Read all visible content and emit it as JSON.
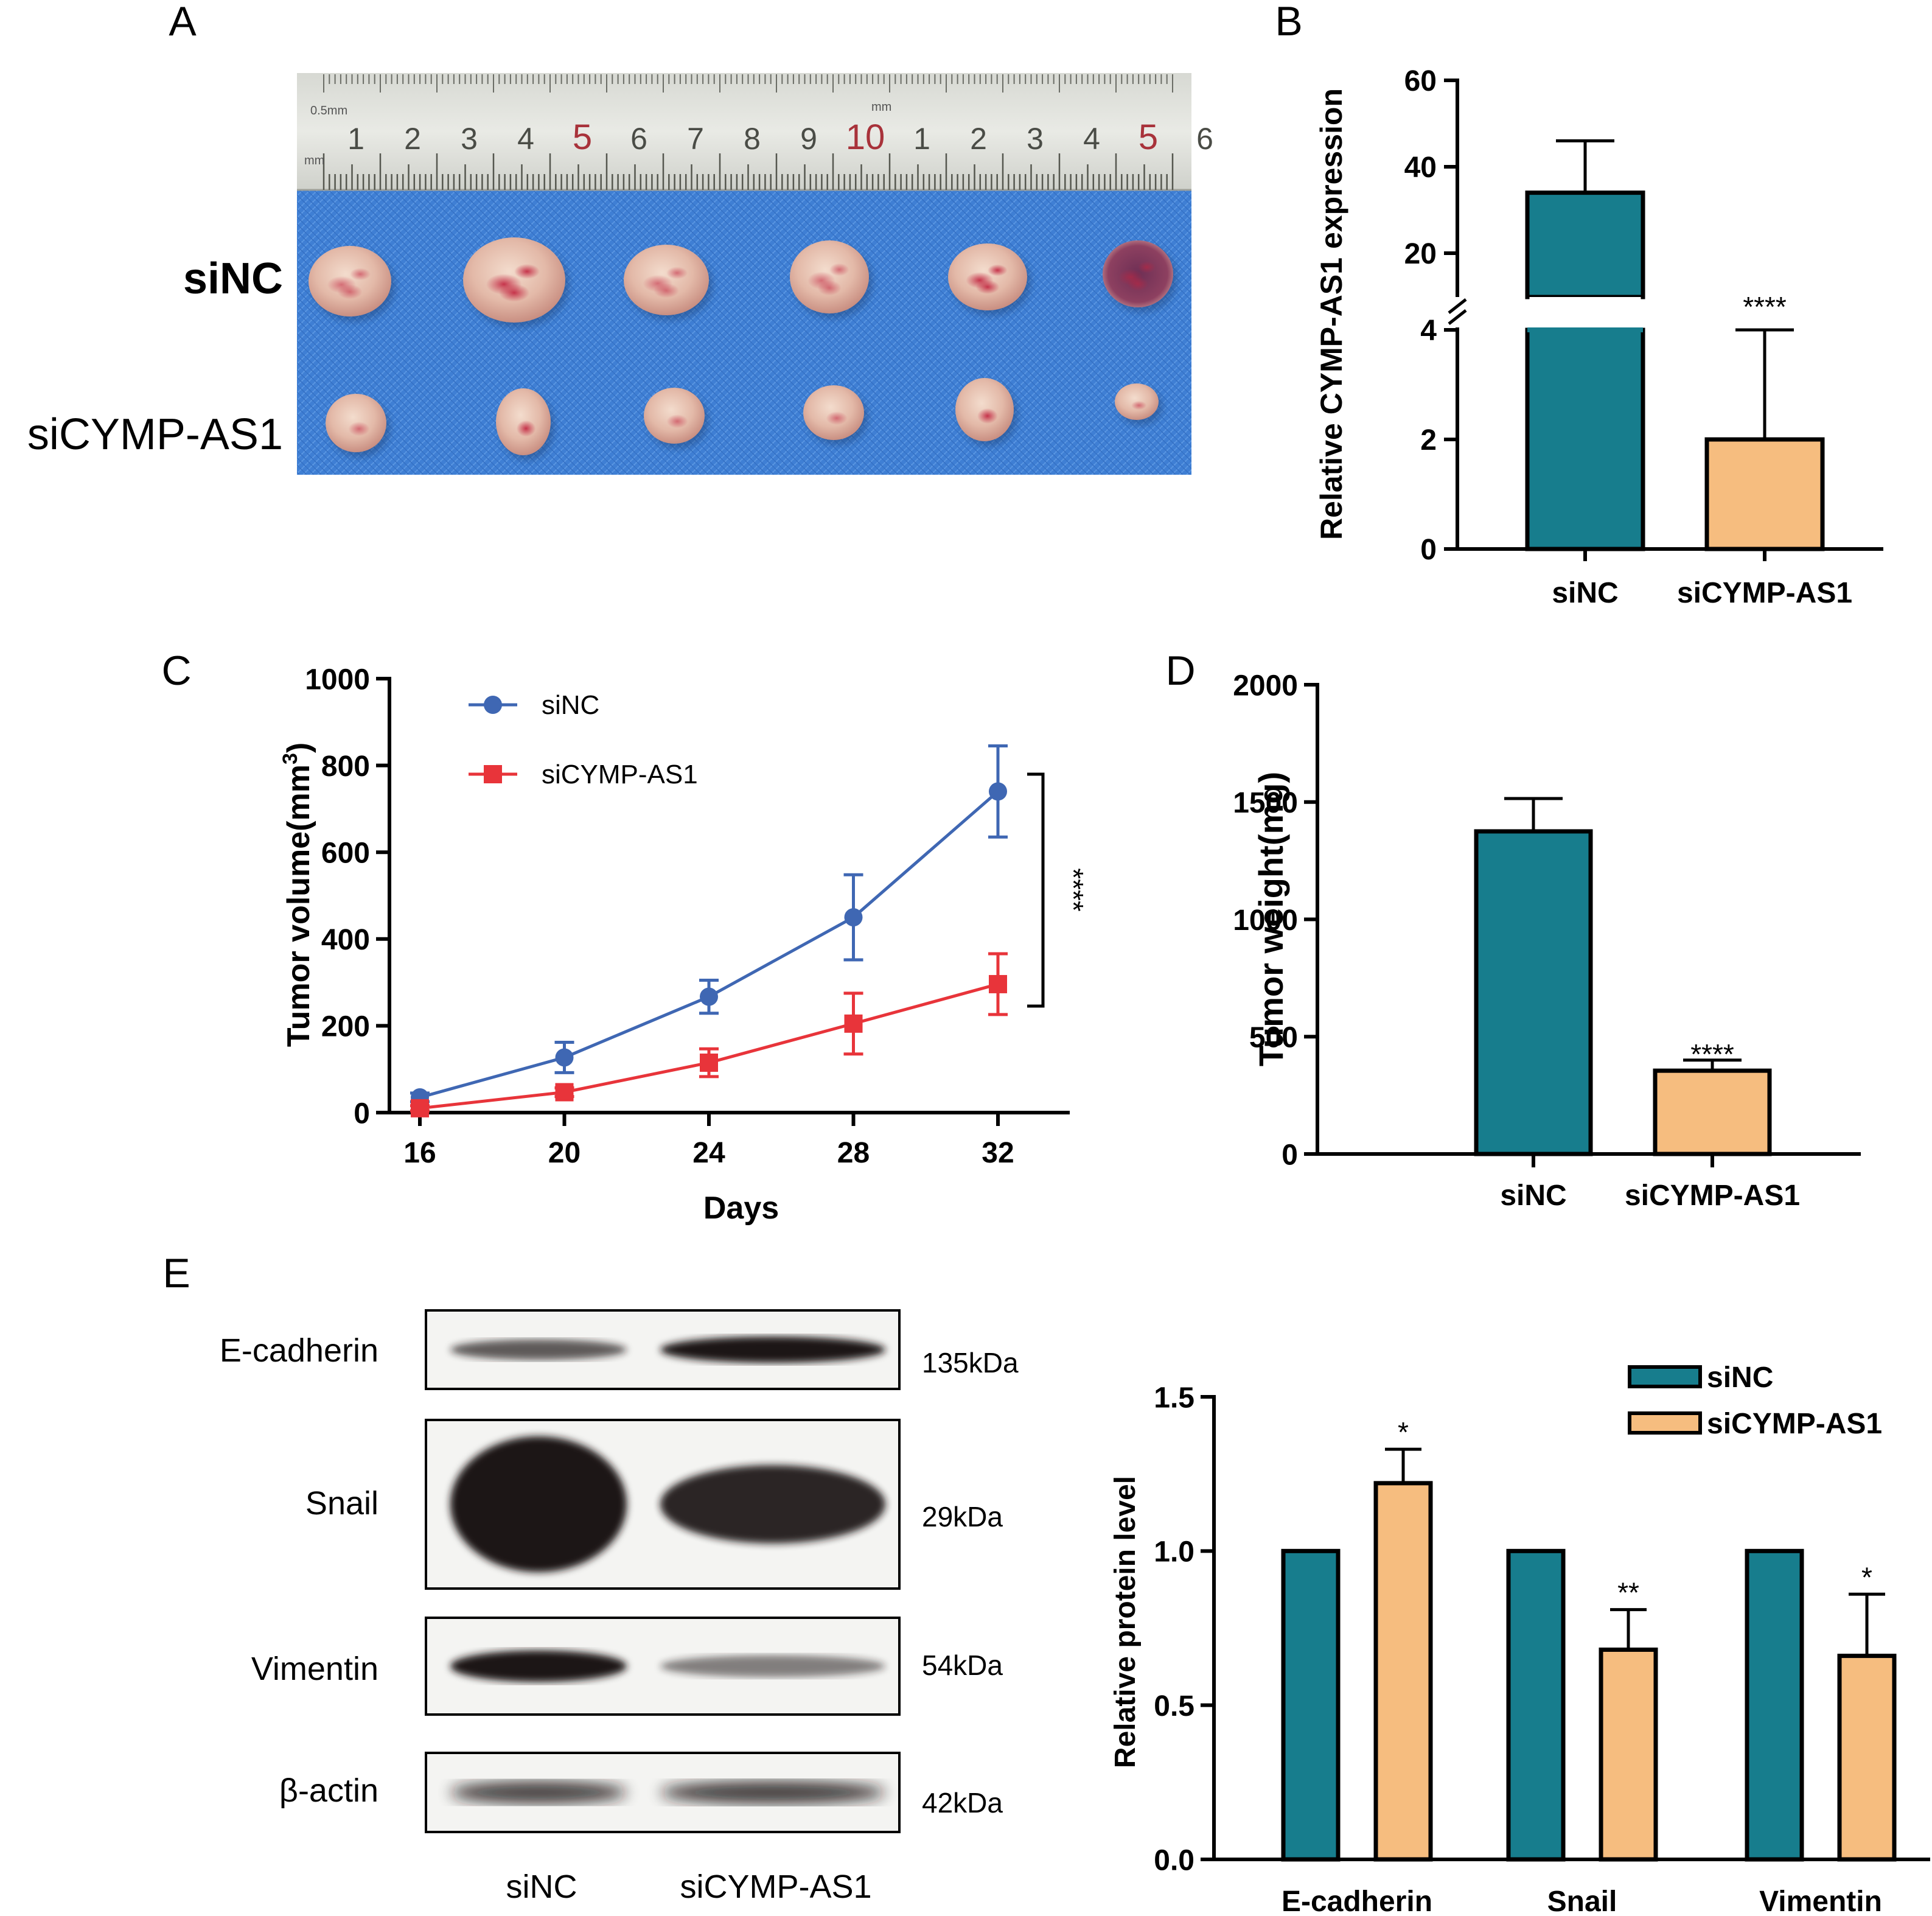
{
  "panel_letters": [
    "A",
    "B",
    "C",
    "D",
    "E"
  ],
  "colors": {
    "teal": "#177d8d",
    "orange": "#f6bd7f",
    "blue": "#3f67b3",
    "red": "#e8343a",
    "tray": "#3f7fd4"
  },
  "photo": {
    "ruler_numbers": [
      "1",
      "2",
      "3",
      "4",
      "5",
      "6",
      "7",
      "8",
      "9",
      "10",
      "1",
      "2",
      "3",
      "4",
      "5",
      "6"
    ],
    "ruler_units": [
      "0.5mm",
      "mm",
      "mm"
    ],
    "row_labels": [
      "siNC",
      "siCYMP-AS1"
    ]
  },
  "chart_data": [
    {
      "panel": "B",
      "type": "bar",
      "categories": [
        "siNC",
        "siCYMP-AS1"
      ],
      "values": [
        34,
        2
      ],
      "errors": [
        12,
        2
      ],
      "ylabel": "Relative CYMP-AS1 expression",
      "ylim": [
        0,
        60
      ],
      "axis_break": [
        4,
        10
      ],
      "yticks": [
        "0",
        "2",
        "4",
        "20",
        "40",
        "60"
      ],
      "significance": [
        "",
        "****"
      ],
      "colors": [
        "#177d8d",
        "#f6bd7f"
      ]
    },
    {
      "panel": "C",
      "type": "line",
      "x": [
        16,
        20,
        24,
        28,
        32
      ],
      "series": [
        {
          "name": "siNC",
          "values": [
            35,
            127,
            267,
            450,
            740
          ],
          "errors": [
            10,
            35,
            38,
            98,
            105
          ],
          "color": "#3f67b3",
          "marker": "circle"
        },
        {
          "name": "siCYMP-AS1",
          "values": [
            10,
            47,
            115,
            205,
            296
          ],
          "errors": [
            6,
            10,
            32,
            70,
            70
          ],
          "color": "#e8343a",
          "marker": "square"
        }
      ],
      "xlabel": "Days",
      "ylabel": "Tumor volume(mm",
      "ylabel_sup": "3",
      "ylabel_close": ")",
      "xlim": [
        16,
        32
      ],
      "ylim": [
        0,
        1000
      ],
      "xticks": [
        "16",
        "20",
        "24",
        "28",
        "32"
      ],
      "yticks": [
        "0",
        "200",
        "400",
        "600",
        "800",
        "1000"
      ],
      "significance": "****",
      "legend": "top-left"
    },
    {
      "panel": "D",
      "type": "bar",
      "categories": [
        "siNC",
        "siCYMP-AS1"
      ],
      "values": [
        1375,
        355
      ],
      "errors": [
        140,
        45
      ],
      "ylabel": "Tumor weight(mg)",
      "ylim": [
        0,
        2000
      ],
      "yticks": [
        "0",
        "500",
        "1000",
        "1500",
        "2000"
      ],
      "significance": [
        "",
        "****"
      ],
      "colors": [
        "#177d8d",
        "#f6bd7f"
      ]
    },
    {
      "panel": "E",
      "type": "bar",
      "categories": [
        "E-cadherin",
        "Snail",
        "Vimentin"
      ],
      "series": [
        {
          "name": "siNC",
          "values": [
            1.0,
            1.0,
            1.0
          ],
          "errors": [
            0,
            0,
            0
          ],
          "color": "#177d8d"
        },
        {
          "name": "siCYMP-AS1",
          "values": [
            1.22,
            0.68,
            0.66
          ],
          "errors": [
            0.11,
            0.13,
            0.2
          ],
          "color": "#f6bd7f"
        }
      ],
      "ylabel": "Relative  protein level",
      "ylim": [
        0,
        1.5
      ],
      "yticks": [
        "0.0",
        "0.5",
        "1.0",
        "1.5"
      ],
      "significance": [
        "*",
        "**",
        "*"
      ],
      "legend": "top-right"
    }
  ],
  "blot": {
    "proteins": [
      {
        "name": "E-cadherin",
        "kda": "135kDa",
        "intensity": [
          0.55,
          1.0
        ]
      },
      {
        "name": "Snail",
        "kda": "29kDa",
        "intensity": [
          1.0,
          0.85
        ]
      },
      {
        "name": "Vimentin",
        "kda": "54kDa",
        "intensity": [
          0.95,
          0.35
        ]
      },
      {
        "name": "β-actin",
        "kda": "42kDa",
        "intensity": [
          0.7,
          0.72
        ]
      }
    ],
    "lane_labels": [
      "siNC",
      "siCYMP-AS1"
    ]
  }
}
